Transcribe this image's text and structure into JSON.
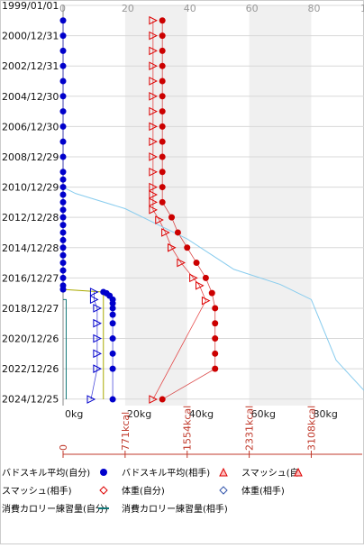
{
  "chart_data": {
    "type": "scatter",
    "orientation": "horizontal-time",
    "y_dates": [
      "1999/01/01",
      "2000/12/31",
      "2002/12/31",
      "2004/12/30",
      "2006/12/30",
      "2008/12/29",
      "2010/12/29",
      "2012/12/28",
      "2014/12/28",
      "2016/12/27",
      "2018/12/27",
      "2020/12/26",
      "2022/12/26",
      "2024/12/25"
    ],
    "x_top_ticks": [
      "0",
      "20",
      "40",
      "60",
      "80",
      "10"
    ],
    "x_bottom_ticks": [
      "0kg",
      "20kg",
      "40kg",
      "60kg",
      "80kg"
    ],
    "kcal_ticks": [
      "0",
      "771kcal",
      "1554kcal",
      "2331kcal",
      "3108kcal"
    ],
    "xlim": [
      0,
      97
    ],
    "background_bands": [
      [
        20,
        40
      ],
      [
        60,
        80
      ]
    ],
    "series": [
      {
        "name": "バドスキル平均(自分)",
        "color": "#0000cc",
        "marker": "filled-circle",
        "points": [
          {
            "date": "1999/12/31",
            "value": 0
          },
          {
            "date": "2000/12/31",
            "value": 0
          },
          {
            "date": "2001/12/31",
            "value": 0
          },
          {
            "date": "2002/12/31",
            "value": 0
          },
          {
            "date": "2003/12/31",
            "value": 0
          },
          {
            "date": "2004/12/30",
            "value": 0
          },
          {
            "date": "2005/12/30",
            "value": 0
          },
          {
            "date": "2006/12/30",
            "value": 0
          },
          {
            "date": "2007/12/30",
            "value": 0
          },
          {
            "date": "2008/12/29",
            "value": 0
          },
          {
            "date": "2009/12/29",
            "value": 0
          },
          {
            "date": "2010/06/30",
            "value": 0
          },
          {
            "date": "2010/12/29",
            "value": 0
          },
          {
            "date": "2011/06/30",
            "value": 0
          },
          {
            "date": "2011/12/29",
            "value": 0
          },
          {
            "date": "2012/06/30",
            "value": 0
          },
          {
            "date": "2012/12/28",
            "value": 0
          },
          {
            "date": "2013/06/30",
            "value": 0
          },
          {
            "date": "2013/12/28",
            "value": 0
          },
          {
            "date": "2014/06/30",
            "value": 0
          },
          {
            "date": "2014/12/28",
            "value": 0
          },
          {
            "date": "2015/06/30",
            "value": 0
          },
          {
            "date": "2015/12/28",
            "value": 0
          },
          {
            "date": "2016/06/30",
            "value": 0
          },
          {
            "date": "2016/12/27",
            "value": 0
          },
          {
            "date": "2017/06/30",
            "value": 0
          },
          {
            "date": "2017/09/30",
            "value": 0
          }
        ]
      },
      {
        "name": "バドスキル平均(相手)",
        "color": "#0000cc",
        "marker": "filled-circle",
        "points": [
          {
            "date": "2017/12/01",
            "value": 13
          },
          {
            "date": "2018/01/01",
            "value": 14
          },
          {
            "date": "2018/03/01",
            "value": 15
          },
          {
            "date": "2018/06/01",
            "value": 16
          },
          {
            "date": "2018/09/01",
            "value": 16
          },
          {
            "date": "2018/12/27",
            "value": 16
          },
          {
            "date": "2019/06/01",
            "value": 16
          },
          {
            "date": "2019/12/27",
            "value": 16
          },
          {
            "date": "2020/12/26",
            "value": 16
          },
          {
            "date": "2021/12/26",
            "value": 16
          },
          {
            "date": "2022/12/26",
            "value": 16
          },
          {
            "date": "2025/01/01",
            "value": 16
          }
        ]
      },
      {
        "name": "スマッシュ(自分)",
        "color": "#dd0000",
        "marker": "open-triangle",
        "points": [
          {
            "date": "1999/12/31",
            "value": 29
          },
          {
            "date": "2000/12/31",
            "value": 29
          },
          {
            "date": "2001/12/31",
            "value": 29
          },
          {
            "date": "2002/12/31",
            "value": 29
          },
          {
            "date": "2003/12/31",
            "value": 29
          },
          {
            "date": "2004/12/30",
            "value": 29
          },
          {
            "date": "2005/12/30",
            "value": 29
          },
          {
            "date": "2006/12/30",
            "value": 29
          },
          {
            "date": "2007/12/30",
            "value": 29
          },
          {
            "date": "2008/12/29",
            "value": 29
          },
          {
            "date": "2009/12/29",
            "value": 29
          },
          {
            "date": "2010/12/29",
            "value": 29
          },
          {
            "date": "2011/06/30",
            "value": 29
          },
          {
            "date": "2011/12/29",
            "value": 29
          },
          {
            "date": "2012/06/30",
            "value": 29
          },
          {
            "date": "2013/03/01",
            "value": 31
          },
          {
            "date": "2013/12/28",
            "value": 33
          },
          {
            "date": "2014/12/28",
            "value": 35
          },
          {
            "date": "2015/12/28",
            "value": 38
          },
          {
            "date": "2016/12/27",
            "value": 42
          },
          {
            "date": "2017/06/30",
            "value": 44
          },
          {
            "date": "2018/06/30",
            "value": 46
          },
          {
            "date": "2025/01/01",
            "value": 29
          }
        ]
      },
      {
        "name": "スマッシュ(相手)",
        "color": "#0000cc",
        "marker": "open-triangle",
        "points": [
          {
            "date": "2017/12/01",
            "value": 10
          },
          {
            "date": "2018/06/01",
            "value": 10
          },
          {
            "date": "2018/12/27",
            "value": 11
          },
          {
            "date": "2019/12/27",
            "value": 11
          },
          {
            "date": "2020/12/26",
            "value": 11
          },
          {
            "date": "2021/12/26",
            "value": 11
          },
          {
            "date": "2022/12/26",
            "value": 11
          },
          {
            "date": "2025/01/01",
            "value": 9
          }
        ]
      },
      {
        "name": "体重(自分)",
        "color": "#cc0000",
        "marker": "filled-circle",
        "points": [
          {
            "date": "1999/12/31",
            "value": 32
          },
          {
            "date": "2000/12/31",
            "value": 32
          },
          {
            "date": "2001/12/31",
            "value": 32
          },
          {
            "date": "2002/12/31",
            "value": 32
          },
          {
            "date": "2003/12/31",
            "value": 32
          },
          {
            "date": "2004/12/30",
            "value": 32
          },
          {
            "date": "2005/12/30",
            "value": 32
          },
          {
            "date": "2006/12/30",
            "value": 32
          },
          {
            "date": "2007/12/30",
            "value": 32
          },
          {
            "date": "2008/12/29",
            "value": 32
          },
          {
            "date": "2009/12/29",
            "value": 32
          },
          {
            "date": "2010/12/29",
            "value": 32
          },
          {
            "date": "2011/12/29",
            "value": 32
          },
          {
            "date": "2012/12/28",
            "value": 35
          },
          {
            "date": "2013/12/28",
            "value": 37
          },
          {
            "date": "2014/12/28",
            "value": 40
          },
          {
            "date": "2015/12/28",
            "value": 43
          },
          {
            "date": "2016/12/27",
            "value": 46
          },
          {
            "date": "2017/12/27",
            "value": 48
          },
          {
            "date": "2018/12/27",
            "value": 49
          },
          {
            "date": "2019/12/27",
            "value": 49
          },
          {
            "date": "2020/12/26",
            "value": 49
          },
          {
            "date": "2021/12/26",
            "value": 49
          },
          {
            "date": "2022/12/26",
            "value": 49
          },
          {
            "date": "2025/01/01",
            "value": 32
          }
        ]
      },
      {
        "name": "体重(相手)",
        "color": "#3355aa",
        "marker": "open-diamond",
        "points": []
      },
      {
        "name": "消費カロリー練習量(自分)",
        "color": "#aaaa00",
        "line": true,
        "points": [
          {
            "date": "2017/09/30",
            "value": 0
          },
          {
            "date": "2017/12/01",
            "value": 13
          },
          {
            "date": "2025/01/01",
            "value": 13
          }
        ]
      },
      {
        "name": "消費カロリー練習量(相手)",
        "color": "#117777",
        "line": true,
        "points": [
          {
            "date": "2018/06/01",
            "value": 0
          },
          {
            "date": "2018/06/01",
            "value": 1
          },
          {
            "date": "2025/01/01",
            "value": 1
          }
        ]
      },
      {
        "name": "",
        "color": "#88ccee",
        "line": true,
        "points": [
          {
            "date": "2011/01/01",
            "value": 0
          },
          {
            "date": "2011/06/01",
            "value": 4
          },
          {
            "date": "2012/06/01",
            "value": 20
          },
          {
            "date": "2013/06/01",
            "value": 30
          },
          {
            "date": "2014/06/01",
            "value": 40
          },
          {
            "date": "2016/06/01",
            "value": 55
          },
          {
            "date": "2017/06/01",
            "value": 70
          },
          {
            "date": "2018/06/01",
            "value": 80
          },
          {
            "date": "2019/06/01",
            "value": 82
          },
          {
            "date": "2022/06/01",
            "value": 88
          },
          {
            "date": "2024/06/01",
            "value": 97
          }
        ]
      }
    ]
  },
  "legend": [
    {
      "label": "バドスキル平均(自分)",
      "marker": "circle-blue"
    },
    {
      "label": "バドスキル平均(相手)",
      "marker": "circle-blue"
    },
    {
      "label": "スマッシュ(自",
      "marker": "triangle-red"
    },
    {
      "label": "スマッシュ(相手)",
      "marker": "none"
    },
    {
      "label": "体重(自分)",
      "marker": "diamond-red"
    },
    {
      "label": "体重(相手)",
      "marker": "diamond-blue"
    },
    {
      "label": "消費カロリー練習量(自分)",
      "marker": "line-yellow"
    },
    {
      "label": "消費カロリー練習量(相手)",
      "marker": "line-teal"
    }
  ]
}
